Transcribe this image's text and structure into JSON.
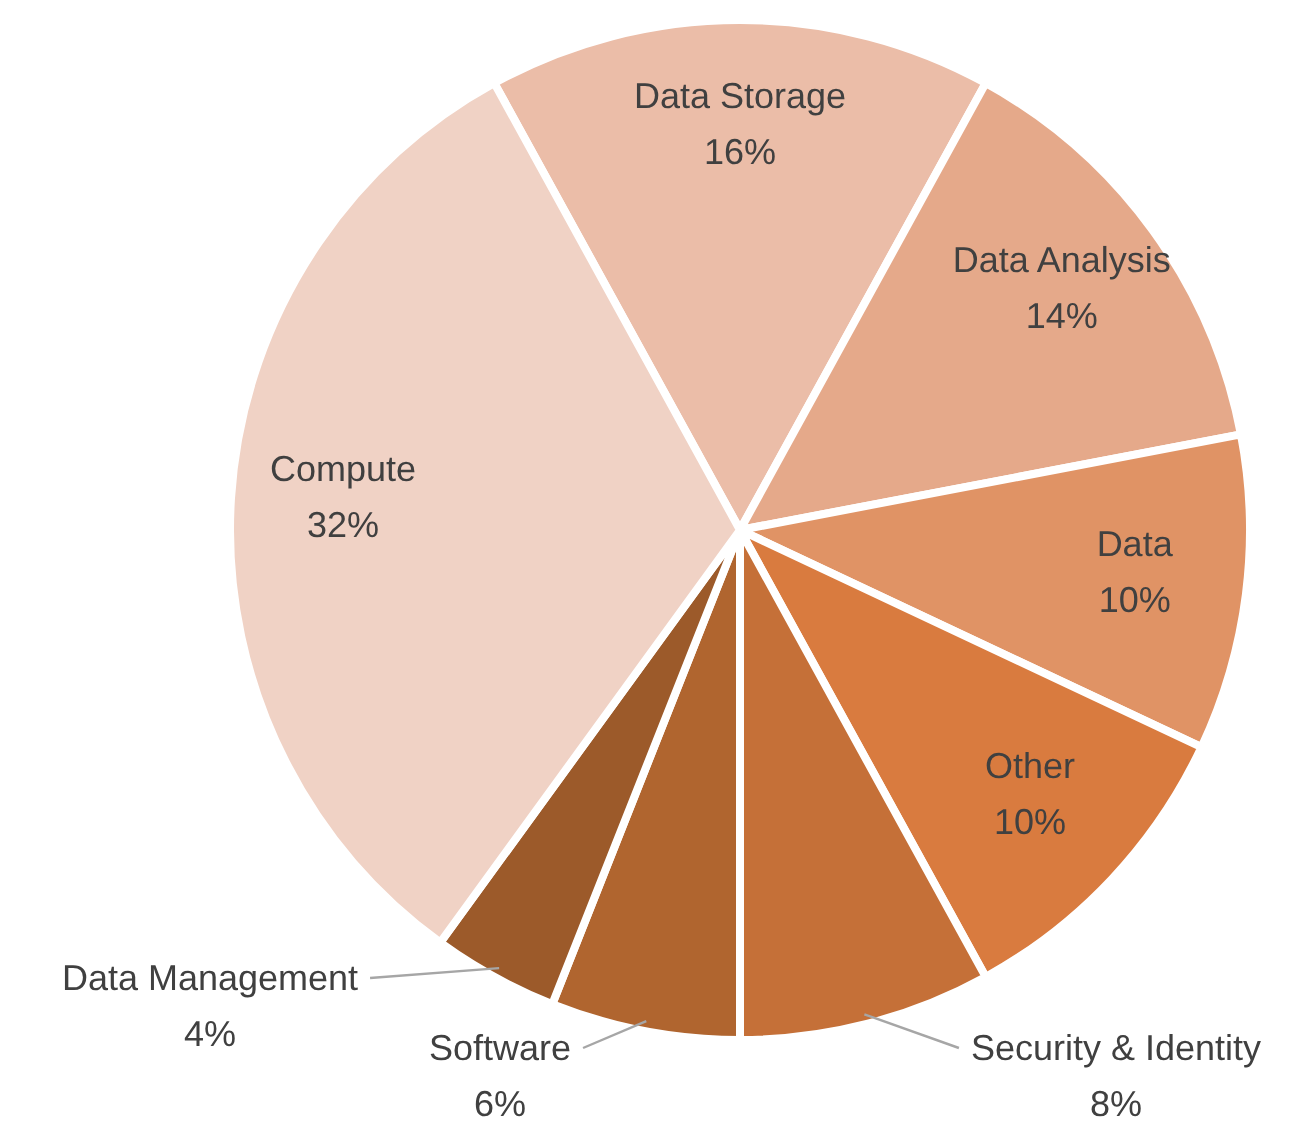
{
  "chart_data": {
    "type": "pie",
    "categories": [
      "Data Storage",
      "Data Analysis",
      "Data",
      "Other",
      "Security & Identity",
      "Software",
      "Data Management",
      "Compute"
    ],
    "values": [
      16,
      14,
      10,
      10,
      8,
      6,
      4,
      32
    ],
    "colors": [
      "#ebbda8",
      "#e5a98a",
      "#e09365",
      "#d97b3f",
      "#c57038",
      "#b0652f",
      "#9c5a2a",
      "#f0d2c5"
    ],
    "value_labels": [
      "16%",
      "14%",
      "10%",
      "10%",
      "8%",
      "6%",
      "4%",
      "32%"
    ]
  }
}
